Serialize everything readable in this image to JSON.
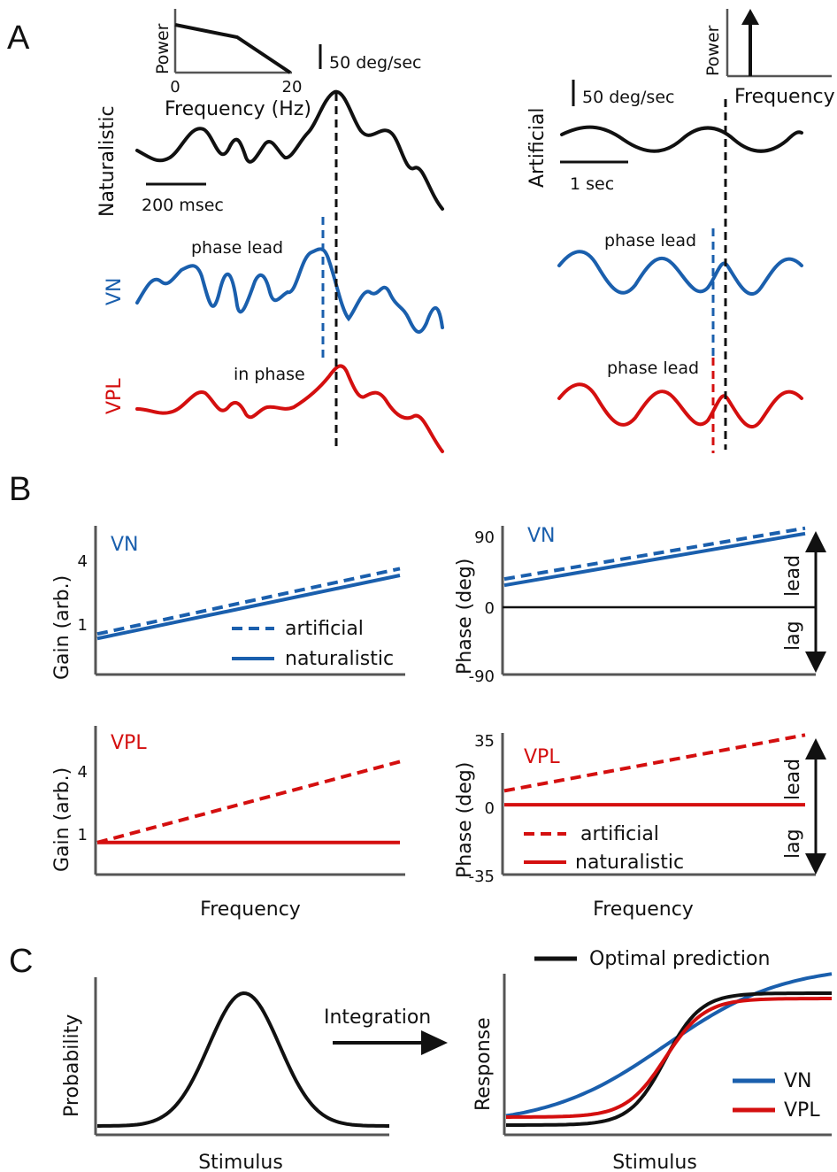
{
  "panels": {
    "a": "A",
    "b": "B",
    "c": "C"
  },
  "colors": {
    "vn": "#1a5fad",
    "vpl": "#d40f0f",
    "black": "#111111",
    "axis": "#555555"
  },
  "panel_a": {
    "naturalistic_label": "Naturalistic",
    "artificial_label": "Artificial",
    "vn_label": "VN",
    "vpl_label": "VPL",
    "scale_velocity": "50 deg/sec",
    "scale_time_naturalistic": "200 msec",
    "scale_time_artificial": "1 sec",
    "phase_lead": "phase lead",
    "in_phase": "in phase",
    "inset_left": {
      "ylabel": "Power",
      "xlabel": "Frequency (Hz)",
      "xtick_min": "0",
      "xtick_max": "20"
    },
    "inset_right": {
      "ylabel": "Power",
      "xlabel": "Frequency"
    }
  },
  "panel_b": {
    "xlabel": "Frequency",
    "lead": "lead",
    "lag": "lag",
    "legend_artificial": "artificial",
    "legend_naturalistic": "naturalistic",
    "gain_ylabel": "Gain (arb.)",
    "phase_ylabel": "Phase (deg)",
    "vn_label": "VN",
    "vpl_label": "VPL",
    "gain_ticks": [
      "4",
      "1"
    ],
    "phase_vn_ticks": [
      "90",
      "0",
      "-90"
    ],
    "phase_vpl_ticks": [
      "35",
      "0",
      "-35"
    ]
  },
  "panel_c": {
    "left_ylabel": "Probability",
    "left_xlabel": "Stimulus",
    "arrow_label": "Integration",
    "right_ylabel": "Response",
    "right_xlabel": "Stimulus",
    "legend_optimal": "Optimal prediction",
    "legend_vn": "VN",
    "legend_vpl": "VPL"
  },
  "chart_data": [
    {
      "type": "line",
      "panel": "B",
      "ylabel": "Gain (arb.)",
      "xlabel": "Frequency",
      "group": "VN",
      "x": [
        0,
        1
      ],
      "series": [
        {
          "name": "artificial",
          "style": "dashed",
          "values": [
            1.0,
            3.9
          ]
        },
        {
          "name": "naturalistic",
          "style": "solid",
          "values": [
            0.8,
            3.6
          ]
        }
      ],
      "yticks": [
        1,
        4
      ],
      "ylim": [
        -0.8,
        5.8
      ],
      "legend": "bottom-right"
    },
    {
      "type": "line",
      "panel": "B",
      "ylabel": "Phase (deg)",
      "xlabel": "Frequency",
      "group": "VN",
      "x": [
        0,
        1
      ],
      "series": [
        {
          "name": "artificial",
          "style": "dashed",
          "values": [
            32,
            97
          ]
        },
        {
          "name": "naturalistic",
          "style": "solid",
          "values": [
            24,
            90
          ]
        }
      ],
      "yticks": [
        -90,
        0,
        90
      ],
      "ylim": [
        -90,
        100
      ]
    },
    {
      "type": "line",
      "panel": "B",
      "ylabel": "Gain (arb.)",
      "xlabel": "Frequency",
      "group": "VPL",
      "x": [
        0,
        1
      ],
      "series": [
        {
          "name": "artificial",
          "style": "dashed",
          "values": [
            1.0,
            5.3
          ]
        },
        {
          "name": "naturalistic",
          "style": "solid",
          "values": [
            1.0,
            1.0
          ]
        }
      ],
      "yticks": [
        1,
        4
      ],
      "ylim": [
        -0.7,
        7.2
      ]
    },
    {
      "type": "line",
      "panel": "B",
      "ylabel": "Phase (deg)",
      "xlabel": "Frequency",
      "group": "VPL",
      "x": [
        0,
        1
      ],
      "series": [
        {
          "name": "artificial",
          "style": "dashed",
          "values": [
            7,
            35
          ]
        },
        {
          "name": "naturalistic",
          "style": "solid",
          "values": [
            0,
            0
          ]
        }
      ],
      "yticks": [
        -35,
        0,
        35
      ],
      "ylim": [
        -35,
        36
      ],
      "legend": "bottom-left"
    },
    {
      "type": "line",
      "panel": "C",
      "ylabel": "Probability",
      "xlabel": "Stimulus",
      "shape": "gaussian",
      "mean": 0,
      "sd": 1
    },
    {
      "type": "line",
      "panel": "C",
      "ylabel": "Response",
      "xlabel": "Stimulus",
      "series": [
        {
          "name": "Optimal prediction",
          "shape": "sigmoid",
          "steepness": 1.0
        },
        {
          "name": "VN",
          "shape": "sigmoid",
          "steepness": 0.3
        },
        {
          "name": "VPL",
          "shape": "sigmoid",
          "steepness": 0.9
        }
      ],
      "legend": "bottom-right"
    }
  ]
}
